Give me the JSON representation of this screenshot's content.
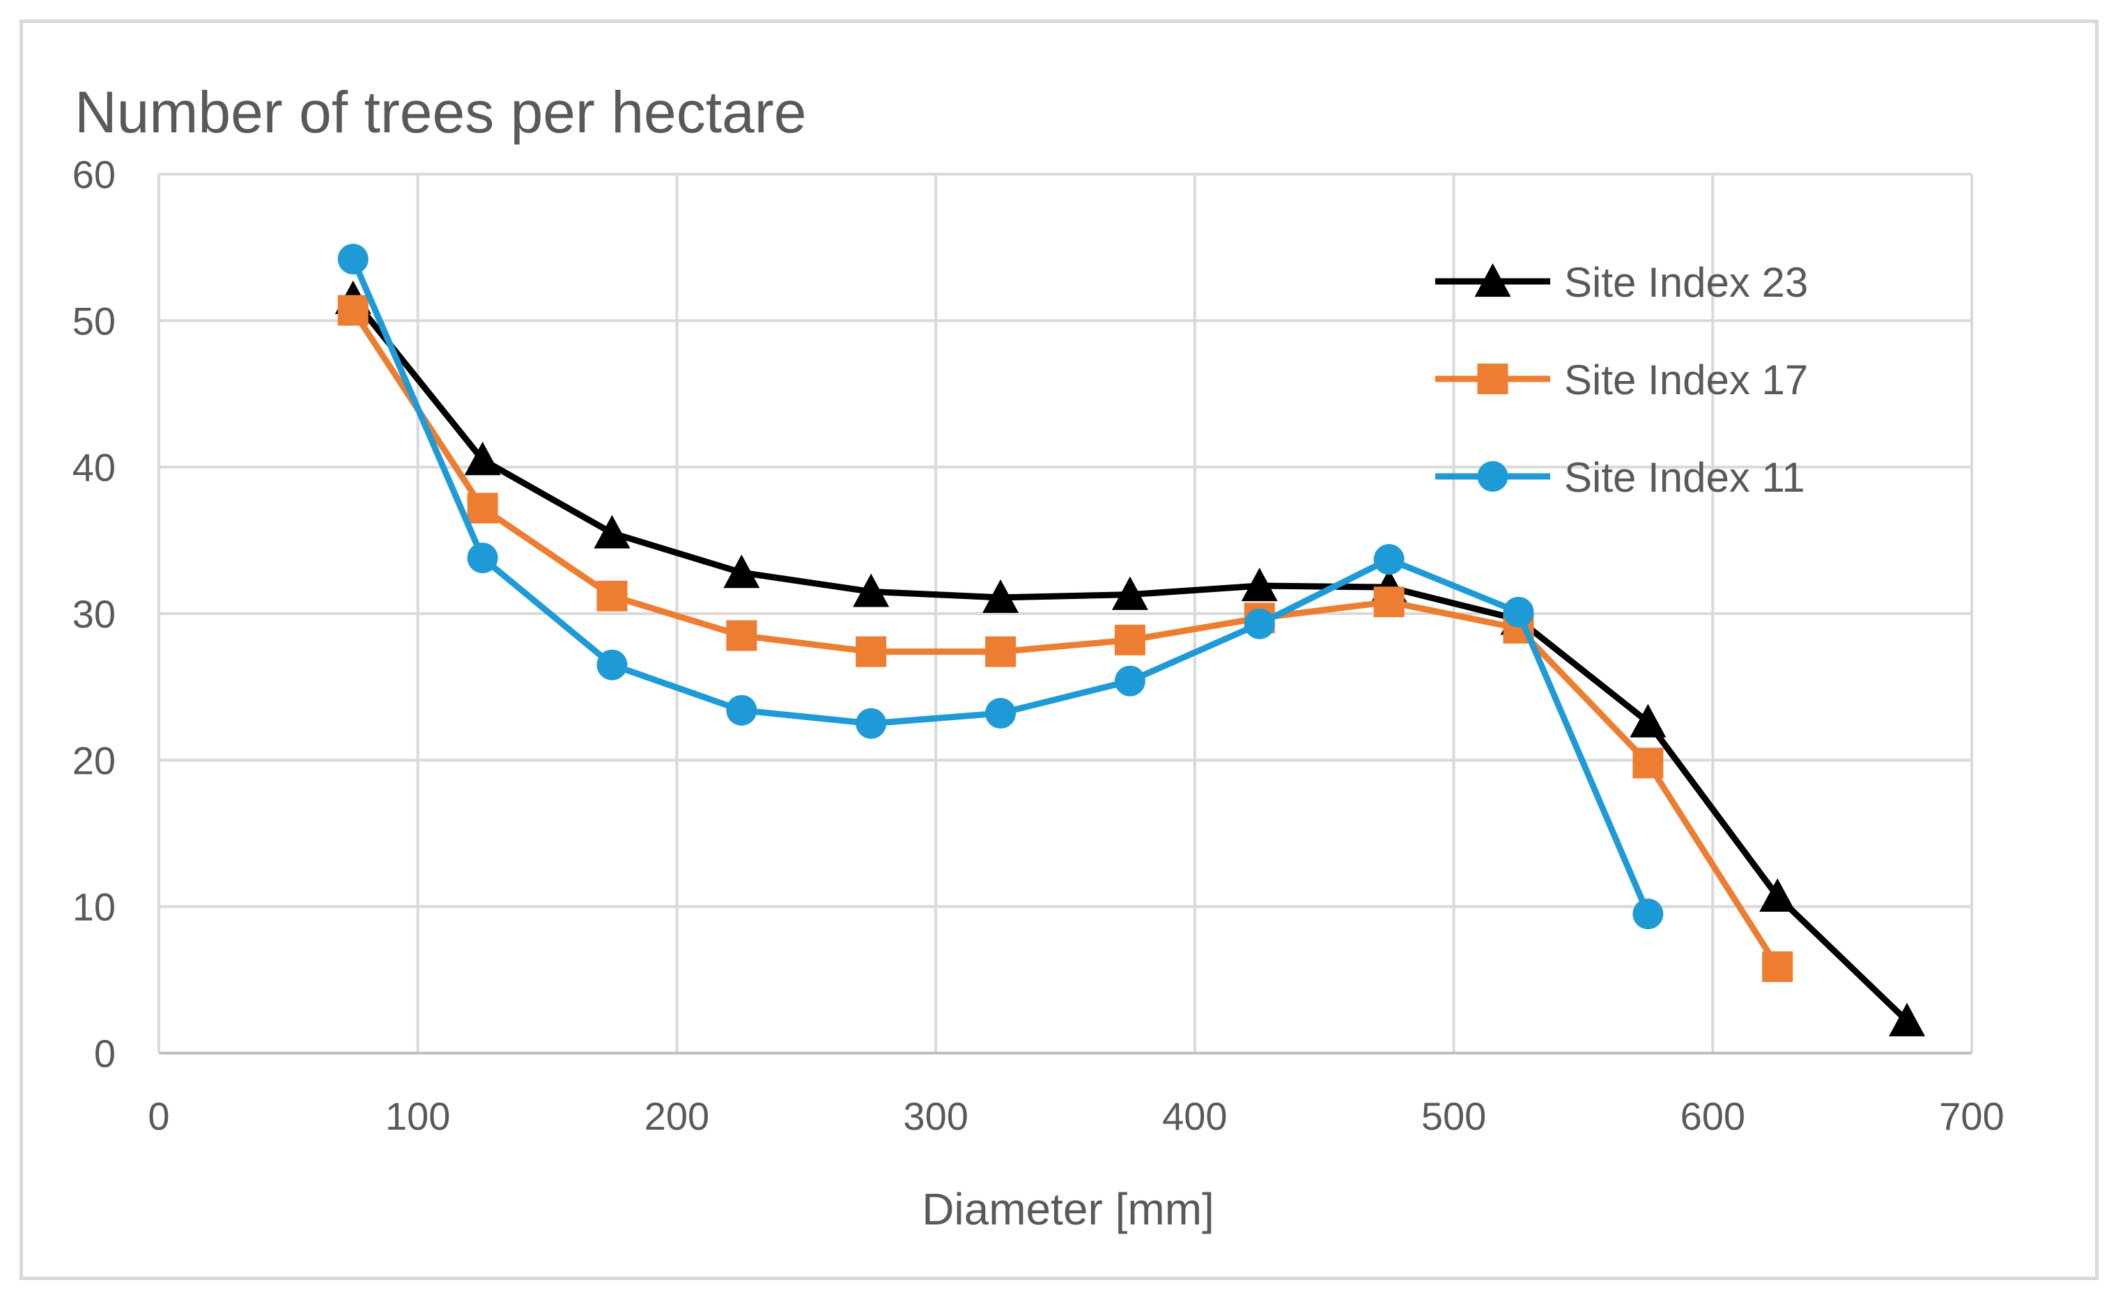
{
  "chart_data": {
    "type": "line",
    "title": "Number of trees per hectare",
    "xlabel": "Diameter [mm]",
    "ylabel": "",
    "xlim": [
      0,
      700
    ],
    "ylim": [
      0,
      60
    ],
    "x_ticks": [
      0,
      100,
      200,
      300,
      400,
      500,
      600,
      700
    ],
    "y_ticks": [
      0,
      10,
      20,
      30,
      40,
      50,
      60
    ],
    "grid": true,
    "legend_position": "top-right",
    "series": [
      {
        "name": "Site Index 23",
        "color": "#000000",
        "marker": "triangle",
        "x": [
          75,
          125,
          175,
          225,
          275,
          325,
          375,
          425,
          475,
          525,
          575,
          625,
          675
        ],
        "y": [
          51.5,
          40.5,
          35.5,
          32.8,
          31.5,
          31.1,
          31.3,
          31.9,
          31.8,
          29.6,
          22.6,
          10.7,
          2.2
        ]
      },
      {
        "name": "Site Index 17",
        "color": "#ED7D31",
        "marker": "square",
        "x": [
          75,
          125,
          175,
          225,
          275,
          325,
          375,
          425,
          475,
          525,
          575,
          625
        ],
        "y": [
          50.7,
          37.2,
          31.2,
          28.5,
          27.4,
          27.4,
          28.2,
          29.7,
          30.8,
          29.0,
          19.8,
          5.9
        ]
      },
      {
        "name": "Site Index 11",
        "color": "#1E9BD7",
        "marker": "circle",
        "x": [
          75,
          125,
          175,
          225,
          275,
          325,
          375,
          425,
          475,
          525,
          575
        ],
        "y": [
          54.2,
          33.8,
          26.5,
          23.4,
          22.5,
          23.2,
          25.4,
          29.3,
          33.7,
          30.1,
          9.5
        ]
      }
    ]
  }
}
